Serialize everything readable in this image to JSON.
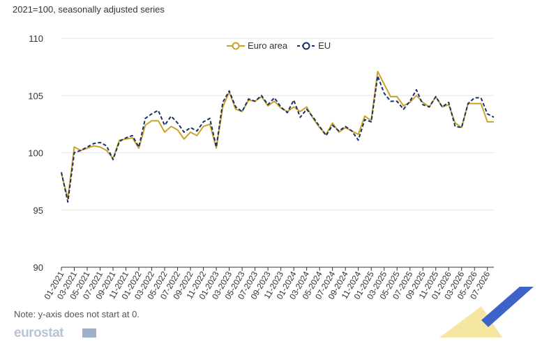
{
  "subtitle": "2021=100, seasonally adjusted series",
  "note": "Note: y-axis does not start at 0.",
  "logo_text": "eurostat",
  "colors": {
    "euro_area": "#c9a227",
    "eu": "#17306b",
    "grid": "#e6e6e6",
    "axis": "#333333"
  },
  "chart_data": {
    "type": "line",
    "ylim": [
      90,
      110
    ],
    "yticks": [
      90,
      95,
      100,
      105,
      110
    ],
    "grid": true,
    "legend_position": "top-center",
    "x": [
      "01-2021",
      "02-2021",
      "03-2021",
      "04-2021",
      "05-2021",
      "06-2021",
      "07-2021",
      "08-2021",
      "09-2021",
      "10-2021",
      "11-2021",
      "12-2021",
      "01-2022",
      "02-2022",
      "03-2022",
      "04-2022",
      "05-2022",
      "06-2022",
      "07-2022",
      "08-2022",
      "09-2022",
      "10-2022",
      "11-2022",
      "12-2022",
      "01-2023",
      "02-2023",
      "03-2023",
      "04-2023",
      "05-2023",
      "06-2023",
      "07-2023",
      "08-2023",
      "09-2023",
      "10-2023",
      "11-2023",
      "12-2023",
      "01-2024",
      "02-2024",
      "03-2024",
      "04-2024",
      "05-2024",
      "06-2024",
      "07-2024",
      "08-2024",
      "09-2024",
      "10-2024",
      "11-2024",
      "12-2024",
      "01-2025",
      "02-2025",
      "03-2025",
      "04-2025",
      "05-2025",
      "06-2025",
      "07-2025",
      "08-2025",
      "09-2025",
      "10-2025",
      "11-2025",
      "12-2025",
      "01-2026",
      "02-2026",
      "03-2026",
      "04-2026",
      "05-2026",
      "06-2026",
      "07-2026",
      "08-2026"
    ],
    "xtick_labels": [
      "01-2021",
      "03-2021",
      "05-2021",
      "07-2021",
      "09-2021",
      "11-2021",
      "01-2022",
      "03-2022",
      "05-2022",
      "07-2022",
      "09-2022",
      "11-2022",
      "01-2023",
      "03-2023",
      "05-2023",
      "07-2023",
      "09-2023",
      "11-2023",
      "01-2024",
      "03-2024",
      "05-2024",
      "07-2024",
      "09-2024",
      "11-2024",
      "01-2025",
      "03-2025",
      "05-2025",
      "07-2025",
      "09-2025",
      "11-2025",
      "01-2026",
      "03-2026",
      "05-2026",
      "07-2026"
    ],
    "series": [
      {
        "name": "Euro area",
        "values": [
          98.2,
          96.0,
          100.5,
          100.2,
          100.4,
          100.6,
          100.5,
          100.2,
          99.5,
          101.1,
          101.2,
          101.3,
          100.4,
          102.4,
          102.8,
          102.8,
          101.8,
          102.3,
          102.0,
          101.2,
          101.8,
          101.5,
          102.3,
          102.5,
          100.4,
          104.0,
          105.3,
          103.8,
          103.6,
          104.6,
          104.5,
          104.9,
          104.1,
          104.5,
          103.9,
          103.6,
          104.0,
          103.6,
          104.0,
          103.0,
          102.2,
          101.6,
          102.6,
          101.8,
          102.2,
          101.9,
          101.6,
          103.2,
          102.8,
          107.1,
          106.0,
          104.9,
          104.9,
          104.1,
          104.4,
          105.0,
          104.4,
          104.0,
          104.9,
          104.0,
          104.2,
          102.6,
          102.2,
          104.3,
          104.3,
          104.3,
          102.7,
          102.7
        ]
      },
      {
        "name": "EU",
        "values": [
          98.3,
          95.7,
          100.0,
          100.2,
          100.5,
          100.8,
          100.9,
          100.6,
          99.4,
          101.0,
          101.3,
          101.5,
          100.5,
          103.0,
          103.4,
          103.7,
          102.4,
          103.2,
          102.6,
          101.8,
          102.2,
          101.9,
          102.7,
          103.0,
          100.5,
          104.4,
          105.4,
          104.0,
          103.6,
          104.7,
          104.5,
          105.0,
          104.2,
          104.8,
          104.0,
          103.5,
          104.6,
          103.1,
          103.8,
          103.1,
          102.3,
          101.5,
          102.4,
          101.9,
          102.3,
          101.9,
          101.1,
          102.9,
          102.7,
          106.7,
          105.2,
          104.5,
          104.5,
          103.8,
          104.5,
          105.5,
          104.2,
          104.0,
          104.9,
          104.0,
          104.4,
          102.3,
          102.2,
          104.3,
          104.8,
          104.8,
          103.4,
          103.1
        ]
      }
    ]
  }
}
